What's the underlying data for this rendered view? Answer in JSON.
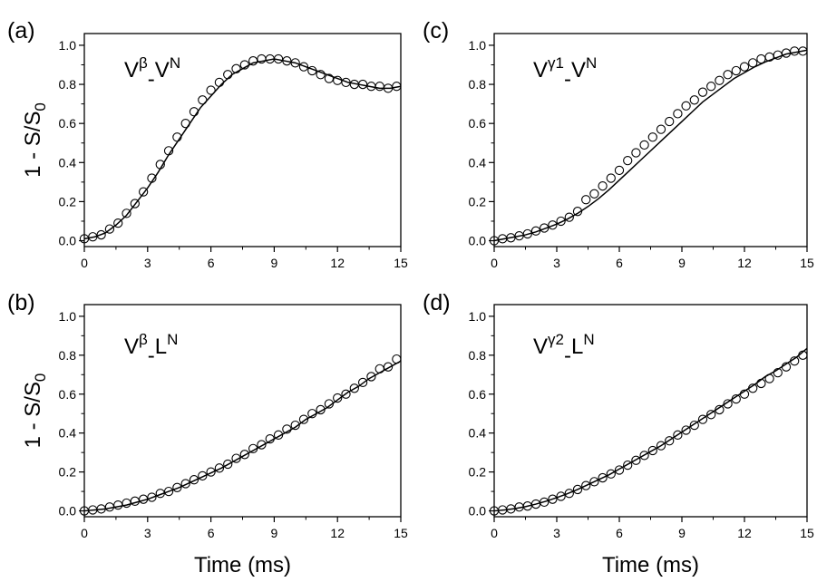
{
  "chart_data": [
    {
      "type": "scatter",
      "panel_label": "(a)",
      "series_label": "Vβ-VN",
      "series_label_parts": {
        "base1": "V",
        "sup1": "β",
        "dash": "-",
        "base2": "V",
        "sup2": "N"
      },
      "xlabel": "",
      "ylabel": "1 - S/S0",
      "ylabel_parts": {
        "main": "1 - S/S",
        "sub": "0"
      },
      "xlim": [
        0,
        15
      ],
      "ylim": [
        -0.03,
        1.06
      ],
      "xticks": [
        0,
        3,
        6,
        9,
        12,
        15
      ],
      "xtick_labels": [
        "0",
        "3",
        "6",
        "9",
        "12",
        "15"
      ],
      "yticks": [
        0.0,
        0.2,
        0.4,
        0.6,
        0.8,
        1.0
      ],
      "ytick_labels": [
        "0.0",
        "0.2",
        "0.4",
        "0.6",
        "0.8",
        "1.0"
      ],
      "grid": false,
      "series": [
        {
          "kind": "points",
          "x": [
            0,
            0.4,
            0.8,
            1.2,
            1.6,
            2.0,
            2.4,
            2.8,
            3.2,
            3.6,
            4.0,
            4.4,
            4.8,
            5.2,
            5.6,
            6.0,
            6.4,
            6.8,
            7.2,
            7.6,
            8.0,
            8.4,
            8.8,
            9.2,
            9.6,
            10.0,
            10.4,
            10.8,
            11.2,
            11.6,
            12.0,
            12.4,
            12.8,
            13.2,
            13.6,
            14.0,
            14.4,
            14.8
          ],
          "y": [
            0.01,
            0.02,
            0.03,
            0.06,
            0.09,
            0.14,
            0.19,
            0.25,
            0.32,
            0.39,
            0.46,
            0.53,
            0.6,
            0.66,
            0.72,
            0.77,
            0.81,
            0.85,
            0.88,
            0.9,
            0.92,
            0.93,
            0.93,
            0.93,
            0.92,
            0.91,
            0.89,
            0.87,
            0.85,
            0.83,
            0.82,
            0.81,
            0.8,
            0.8,
            0.79,
            0.79,
            0.78,
            0.79
          ]
        },
        {
          "kind": "line",
          "x": [
            0,
            0.5,
            1,
            1.5,
            2,
            2.5,
            3,
            3.5,
            4,
            4.5,
            5,
            5.5,
            6,
            6.5,
            7,
            7.5,
            8,
            8.5,
            9,
            9.5,
            10,
            10.5,
            11,
            11.5,
            12,
            12.5,
            13,
            13.5,
            14,
            14.5,
            15
          ],
          "y": [
            0.01,
            0.02,
            0.04,
            0.08,
            0.13,
            0.2,
            0.27,
            0.35,
            0.44,
            0.52,
            0.6,
            0.68,
            0.74,
            0.8,
            0.85,
            0.88,
            0.91,
            0.92,
            0.93,
            0.92,
            0.91,
            0.89,
            0.87,
            0.85,
            0.83,
            0.81,
            0.8,
            0.79,
            0.78,
            0.78,
            0.79
          ]
        }
      ]
    },
    {
      "type": "scatter",
      "panel_label": "(b)",
      "series_label": "Vβ-LN",
      "series_label_parts": {
        "base1": "V",
        "sup1": "β",
        "dash": "-",
        "base2": "L",
        "sup2": "N"
      },
      "xlabel": "Time (ms)",
      "ylabel": "1 - S/S0",
      "ylabel_parts": {
        "main": "1 - S/S",
        "sub": "0"
      },
      "xlim": [
        0,
        15
      ],
      "ylim": [
        -0.03,
        1.06
      ],
      "xticks": [
        0,
        3,
        6,
        9,
        12,
        15
      ],
      "xtick_labels": [
        "0",
        "3",
        "6",
        "9",
        "12",
        "15"
      ],
      "yticks": [
        0.0,
        0.2,
        0.4,
        0.6,
        0.8,
        1.0
      ],
      "ytick_labels": [
        "0.0",
        "0.2",
        "0.4",
        "0.6",
        "0.8",
        "1.0"
      ],
      "grid": false,
      "series": [
        {
          "kind": "points",
          "x": [
            0,
            0.4,
            0.8,
            1.2,
            1.6,
            2.0,
            2.4,
            2.8,
            3.2,
            3.6,
            4.0,
            4.4,
            4.8,
            5.2,
            5.6,
            6.0,
            6.4,
            6.8,
            7.2,
            7.6,
            8.0,
            8.4,
            8.8,
            9.2,
            9.6,
            10.0,
            10.4,
            10.8,
            11.2,
            11.6,
            12.0,
            12.4,
            12.8,
            13.2,
            13.6,
            14.0,
            14.4,
            14.8
          ],
          "y": [
            0.0,
            0.005,
            0.01,
            0.02,
            0.03,
            0.04,
            0.05,
            0.06,
            0.07,
            0.09,
            0.1,
            0.12,
            0.14,
            0.16,
            0.18,
            0.2,
            0.22,
            0.24,
            0.27,
            0.29,
            0.32,
            0.34,
            0.37,
            0.39,
            0.42,
            0.44,
            0.47,
            0.5,
            0.52,
            0.55,
            0.58,
            0.6,
            0.63,
            0.66,
            0.69,
            0.73,
            0.74,
            0.78
          ]
        },
        {
          "kind": "line",
          "x": [
            0,
            0.5,
            1,
            1.5,
            2,
            2.5,
            3,
            3.5,
            4,
            4.5,
            5,
            5.5,
            6,
            6.5,
            7,
            7.5,
            8,
            8.5,
            9,
            9.5,
            10,
            10.5,
            11,
            11.5,
            12,
            12.5,
            13,
            13.5,
            14,
            14.5,
            15
          ],
          "y": [
            0.0,
            0.005,
            0.01,
            0.02,
            0.03,
            0.045,
            0.06,
            0.08,
            0.1,
            0.12,
            0.145,
            0.17,
            0.195,
            0.22,
            0.25,
            0.28,
            0.31,
            0.34,
            0.37,
            0.4,
            0.43,
            0.47,
            0.5,
            0.53,
            0.57,
            0.61,
            0.64,
            0.68,
            0.71,
            0.74,
            0.77
          ]
        }
      ]
    },
    {
      "type": "scatter",
      "panel_label": "(c)",
      "series_label": "Vγ1-VN",
      "series_label_parts": {
        "base1": "V",
        "sup1": "γ1",
        "dash": "-",
        "base2": "V",
        "sup2": "N"
      },
      "xlabel": "",
      "ylabel": "",
      "xlim": [
        0,
        15
      ],
      "ylim": [
        -0.03,
        1.06
      ],
      "xticks": [
        0,
        3,
        6,
        9,
        12,
        15
      ],
      "xtick_labels": [
        "0",
        "3",
        "6",
        "9",
        "12",
        "15"
      ],
      "yticks": [
        0.0,
        0.2,
        0.4,
        0.6,
        0.8,
        1.0
      ],
      "ytick_labels": [
        "0.0",
        "0.2",
        "0.4",
        "0.6",
        "0.8",
        "1.0"
      ],
      "grid": false,
      "series": [
        {
          "kind": "points",
          "x": [
            0,
            0.4,
            0.8,
            1.2,
            1.6,
            2.0,
            2.4,
            2.8,
            3.2,
            3.6,
            4.0,
            4.4,
            4.8,
            5.2,
            5.6,
            6.0,
            6.4,
            6.8,
            7.2,
            7.6,
            8.0,
            8.4,
            8.8,
            9.2,
            9.6,
            10.0,
            10.4,
            10.8,
            11.2,
            11.6,
            12.0,
            12.4,
            12.8,
            13.2,
            13.6,
            14.0,
            14.4,
            14.8
          ],
          "y": [
            0.0,
            0.01,
            0.015,
            0.025,
            0.035,
            0.05,
            0.065,
            0.08,
            0.1,
            0.12,
            0.15,
            0.21,
            0.24,
            0.28,
            0.32,
            0.36,
            0.41,
            0.45,
            0.49,
            0.53,
            0.57,
            0.61,
            0.65,
            0.69,
            0.72,
            0.76,
            0.79,
            0.82,
            0.85,
            0.87,
            0.89,
            0.91,
            0.93,
            0.94,
            0.95,
            0.96,
            0.97,
            0.97
          ]
        },
        {
          "kind": "line",
          "x": [
            0,
            0.5,
            1,
            1.5,
            2,
            2.5,
            3,
            3.5,
            4,
            4.5,
            5,
            5.5,
            6,
            6.5,
            7,
            7.5,
            8,
            8.5,
            9,
            9.5,
            10,
            10.5,
            11,
            11.5,
            12,
            12.5,
            13,
            13.5,
            14,
            14.5,
            15
          ],
          "y": [
            0.0,
            0.01,
            0.02,
            0.03,
            0.045,
            0.065,
            0.085,
            0.11,
            0.14,
            0.175,
            0.215,
            0.26,
            0.31,
            0.36,
            0.41,
            0.46,
            0.51,
            0.56,
            0.61,
            0.66,
            0.71,
            0.75,
            0.79,
            0.83,
            0.86,
            0.89,
            0.915,
            0.935,
            0.955,
            0.965,
            0.975
          ]
        }
      ]
    },
    {
      "type": "scatter",
      "panel_label": "(d)",
      "series_label": "Vγ2-LN",
      "series_label_parts": {
        "base1": "V",
        "sup1": "γ2",
        "dash": "-",
        "base2": "L",
        "sup2": "N"
      },
      "xlabel": "Time (ms)",
      "ylabel": "",
      "xlim": [
        0,
        15
      ],
      "ylim": [
        -0.03,
        1.06
      ],
      "xticks": [
        0,
        3,
        6,
        9,
        12,
        15
      ],
      "xtick_labels": [
        "0",
        "3",
        "6",
        "9",
        "12",
        "15"
      ],
      "yticks": [
        0.0,
        0.2,
        0.4,
        0.6,
        0.8,
        1.0
      ],
      "ytick_labels": [
        "0.0",
        "0.2",
        "0.4",
        "0.6",
        "0.8",
        "1.0"
      ],
      "grid": false,
      "series": [
        {
          "kind": "points",
          "x": [
            0,
            0.4,
            0.8,
            1.2,
            1.6,
            2.0,
            2.4,
            2.8,
            3.2,
            3.6,
            4.0,
            4.4,
            4.8,
            5.2,
            5.6,
            6.0,
            6.4,
            6.8,
            7.2,
            7.6,
            8.0,
            8.4,
            8.8,
            9.2,
            9.6,
            10.0,
            10.4,
            10.8,
            11.2,
            11.6,
            12.0,
            12.4,
            12.8,
            13.2,
            13.6,
            14.0,
            14.4,
            14.8
          ],
          "y": [
            0.0,
            0.005,
            0.01,
            0.02,
            0.025,
            0.035,
            0.045,
            0.06,
            0.075,
            0.09,
            0.11,
            0.13,
            0.15,
            0.17,
            0.19,
            0.21,
            0.235,
            0.26,
            0.285,
            0.31,
            0.335,
            0.36,
            0.39,
            0.415,
            0.44,
            0.47,
            0.495,
            0.52,
            0.55,
            0.575,
            0.6,
            0.63,
            0.655,
            0.68,
            0.71,
            0.74,
            0.77,
            0.8
          ]
        },
        {
          "kind": "line",
          "x": [
            0,
            0.5,
            1,
            1.5,
            2,
            2.5,
            3,
            3.5,
            4,
            4.5,
            5,
            5.5,
            6,
            6.5,
            7,
            7.5,
            8,
            8.5,
            9,
            9.5,
            10,
            10.5,
            11,
            11.5,
            12,
            12.5,
            13,
            13.5,
            14,
            14.5,
            15
          ],
          "y": [
            0.0,
            0.005,
            0.012,
            0.022,
            0.035,
            0.05,
            0.068,
            0.088,
            0.11,
            0.135,
            0.16,
            0.185,
            0.215,
            0.245,
            0.275,
            0.305,
            0.335,
            0.37,
            0.405,
            0.44,
            0.475,
            0.51,
            0.545,
            0.58,
            0.615,
            0.65,
            0.69,
            0.72,
            0.755,
            0.79,
            0.835
          ]
        }
      ]
    }
  ]
}
